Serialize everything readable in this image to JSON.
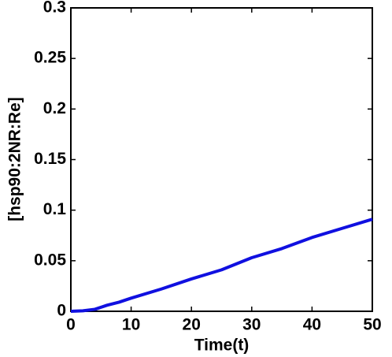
{
  "chart_data": {
    "type": "line",
    "xlabel": "Time(t)",
    "ylabel": "[hsp90:2NR:Re]",
    "x": [
      0,
      2,
      4,
      6,
      8,
      10,
      15,
      20,
      25,
      30,
      35,
      40,
      45,
      50
    ],
    "series": [
      {
        "color": "#1010e0",
        "values": [
          0,
          0.0005,
          0.002,
          0.006,
          0.009,
          0.013,
          0.022,
          0.032,
          0.041,
          0.053,
          0.062,
          0.073,
          0.082,
          0.091
        ]
      }
    ],
    "xlim": [
      0,
      50
    ],
    "xticks": [
      0,
      10,
      20,
      30,
      40,
      50
    ],
    "ylim": [
      0,
      0.3
    ],
    "yticks": [
      0,
      0.05,
      0.1,
      0.15,
      0.2,
      0.25,
      0.3
    ],
    "grid": false
  }
}
